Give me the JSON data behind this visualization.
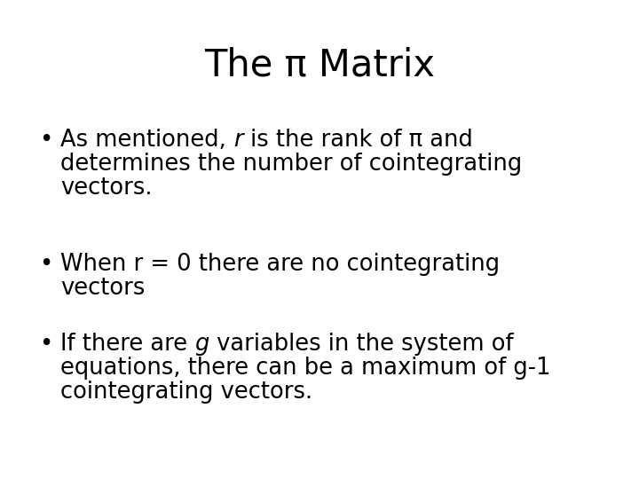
{
  "title": "The π Matrix",
  "background_color": "#ffffff",
  "title_fontsize": 30,
  "title_color": "#000000",
  "bullet_fontsize": 18.5,
  "bullet_color": "#000000",
  "bullets": [
    {
      "lines": [
        [
          {
            "text": "As mentioned, ",
            "style": "normal"
          },
          {
            "text": "r",
            "style": "italic"
          },
          {
            "text": " is the rank of π and",
            "style": "normal"
          }
        ],
        [
          {
            "text": "determines the number of cointegrating",
            "style": "normal"
          }
        ],
        [
          {
            "text": "vectors.",
            "style": "normal"
          }
        ]
      ]
    },
    {
      "lines": [
        [
          {
            "text": "When r = 0 there are no cointegrating",
            "style": "normal"
          }
        ],
        [
          {
            "text": "vectors",
            "style": "normal"
          }
        ]
      ]
    },
    {
      "lines": [
        [
          {
            "text": "If there are ",
            "style": "normal"
          },
          {
            "text": "g",
            "style": "italic"
          },
          {
            "text": " variables in the system of",
            "style": "normal"
          }
        ],
        [
          {
            "text": "equations, there can be a maximum of g-1",
            "style": "normal"
          }
        ],
        [
          {
            "text": "cointegrating vectors.",
            "style": "normal"
          }
        ]
      ]
    }
  ]
}
